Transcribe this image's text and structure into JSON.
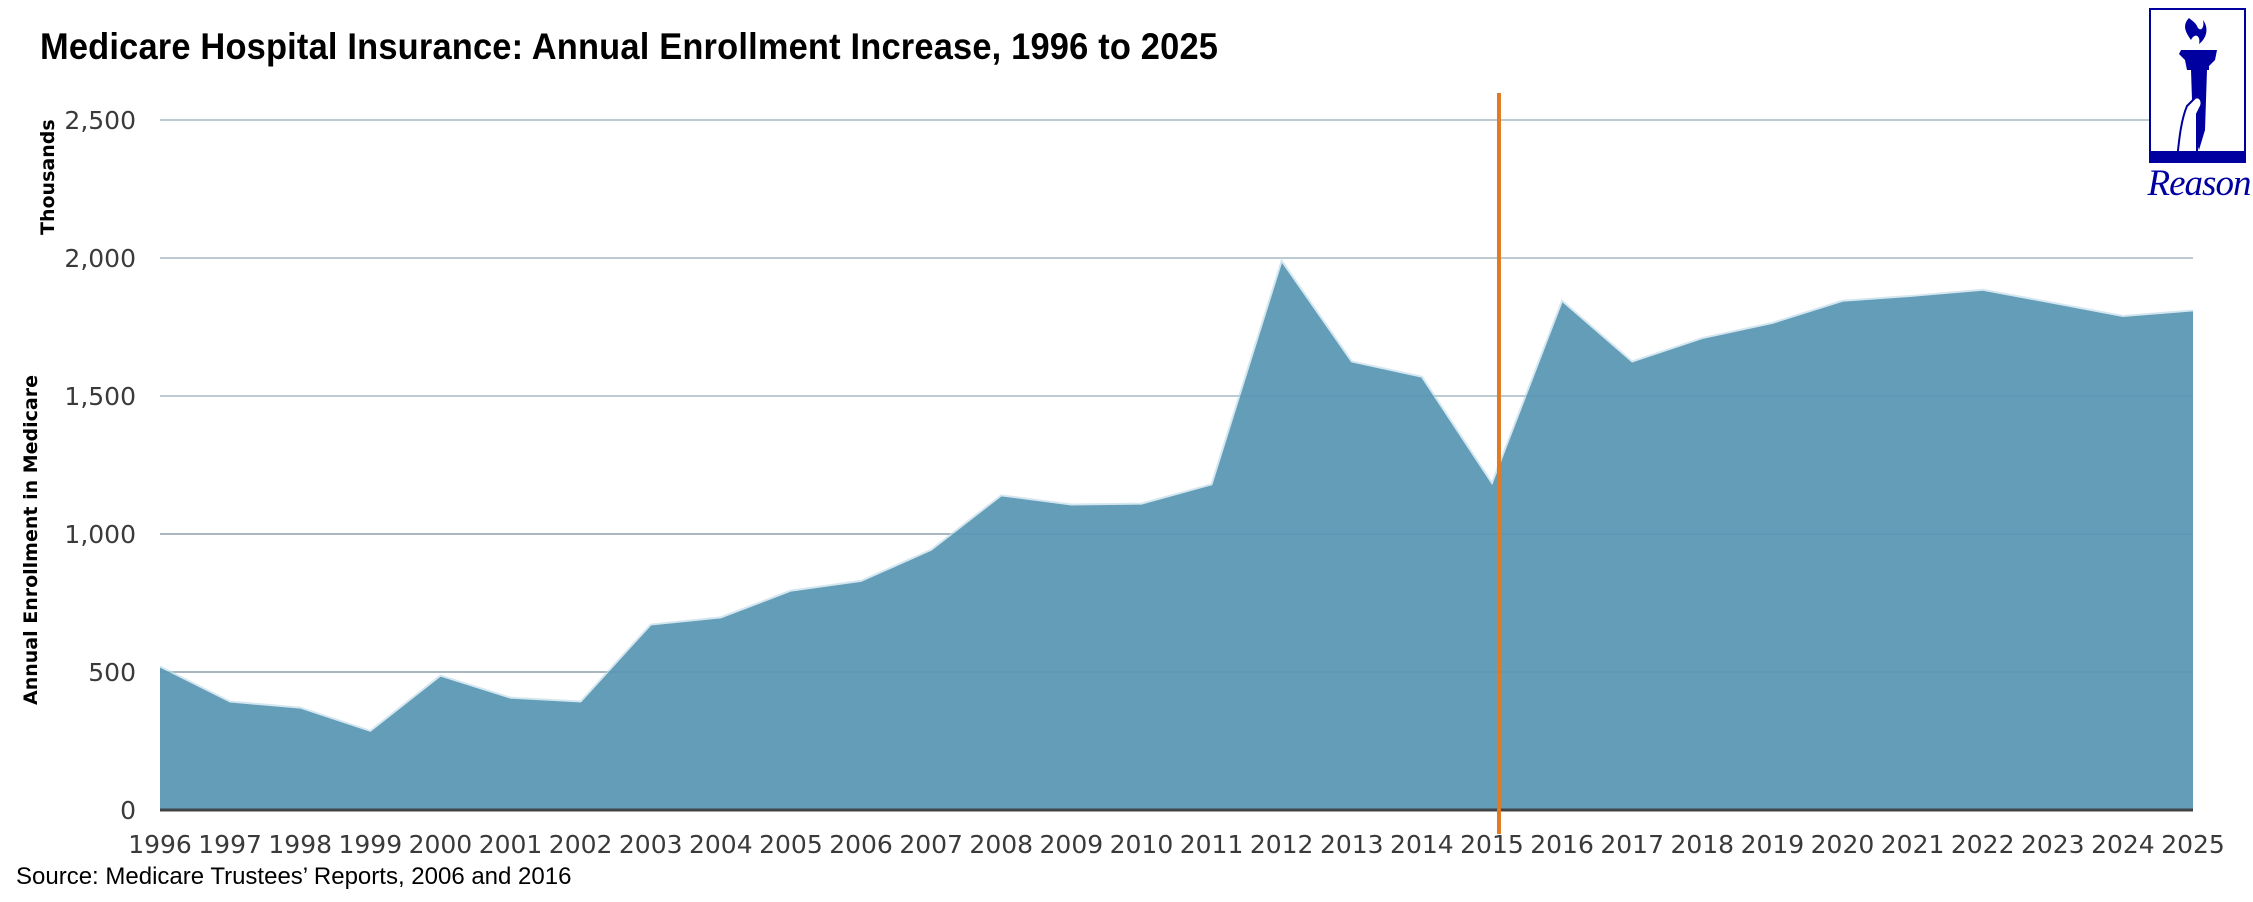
{
  "chart_data": {
    "type": "area",
    "title": "Medicare Hospital Insurance: Annual Enrollment Increase, 1996 to 2025",
    "xlabel": "",
    "ylabel": "Annual Enrollment in Medicare",
    "ylabel_units": "Thousands",
    "ylim": [
      0,
      2500
    ],
    "yticks": [
      0,
      500,
      1000,
      1500,
      2000,
      2500
    ],
    "ytick_labels": [
      "0",
      "500",
      "1,000",
      "1,500",
      "2,000",
      "2,500"
    ],
    "grid": true,
    "categories": [
      "1996",
      "1997",
      "1998",
      "1999",
      "2000",
      "2001",
      "2002",
      "2003",
      "2004",
      "2005",
      "2006",
      "2007",
      "2008",
      "2009",
      "2010",
      "2011",
      "2012",
      "2013",
      "2014",
      "2015",
      "2016",
      "2017",
      "2018",
      "2019",
      "2020",
      "2021",
      "2022",
      "2023",
      "2024",
      "2025"
    ],
    "series": [
      {
        "name": "Annual Enrollment Increase",
        "color": "#639db8",
        "values": [
          520,
          393,
          371,
          287,
          487,
          407,
          393,
          672,
          698,
          795,
          830,
          943,
          1140,
          1107,
          1110,
          1180,
          1990,
          1625,
          1570,
          1185,
          1845,
          1625,
          1710,
          1765,
          1845,
          1863,
          1885,
          1838,
          1790,
          1810
        ]
      }
    ],
    "annotations": [
      {
        "type": "vertical-line",
        "x": "2015",
        "color": "#e07b24"
      }
    ],
    "source": "Source: Medicare Trustees’ Reports, 2006 and 2016"
  },
  "logo": {
    "text": "Reason",
    "color": "#0000a0"
  }
}
